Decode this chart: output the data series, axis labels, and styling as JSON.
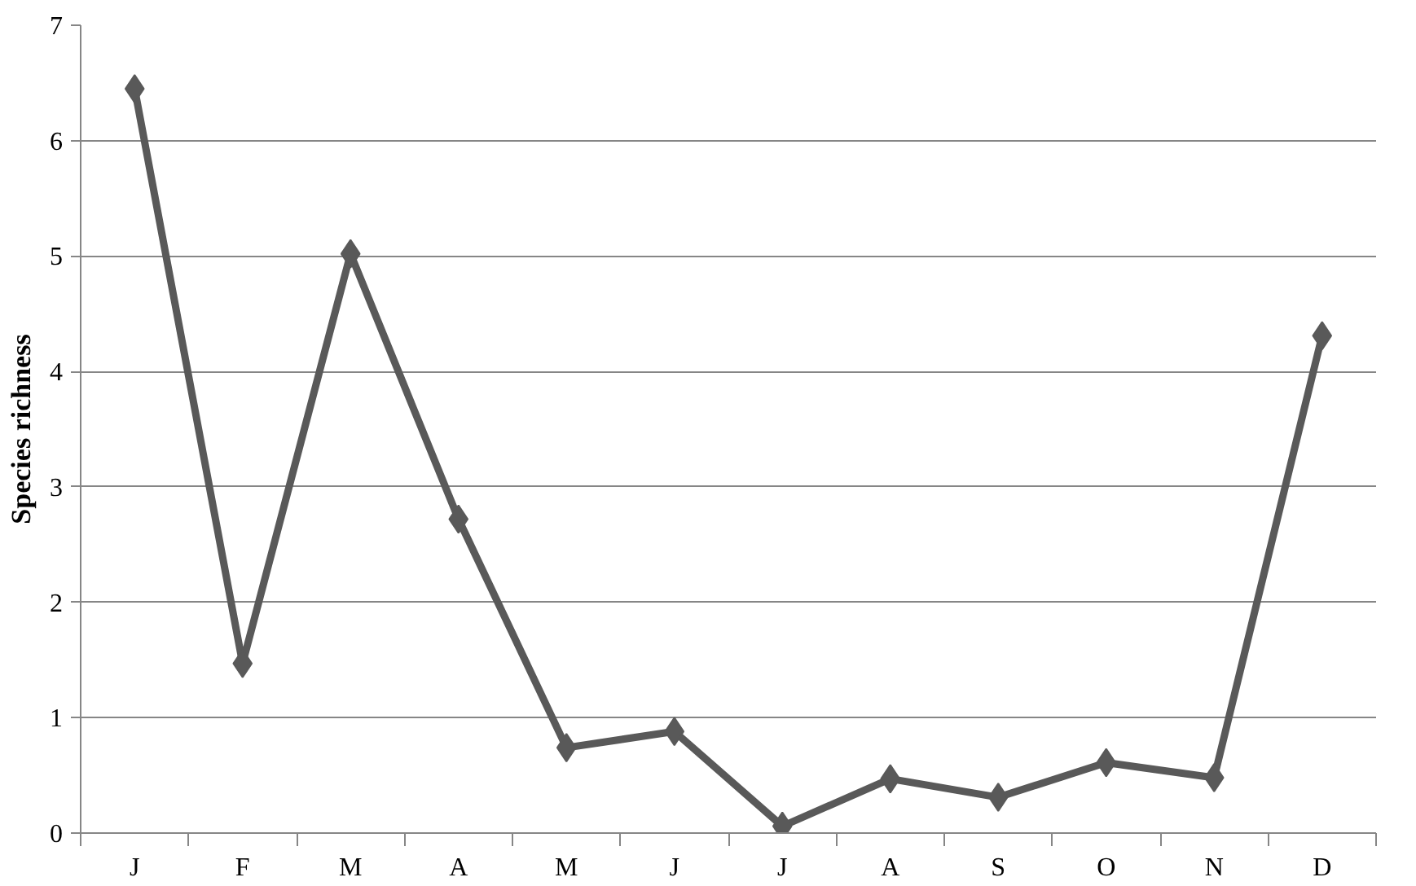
{
  "chart_data": {
    "type": "line",
    "ylabel": "Species richness",
    "categories": [
      "J",
      "F",
      "M",
      "A",
      "M",
      "J",
      "J",
      "A",
      "S",
      "O",
      "N",
      "D"
    ],
    "series": [
      {
        "color": "#595959",
        "values": [
          6.45,
          1.47,
          5.02,
          2.72,
          0.74,
          0.88,
          0.06,
          0.47,
          0.31,
          0.61,
          0.48,
          4.31
        ]
      }
    ],
    "ylim": [
      0,
      7
    ],
    "yticks": [
      0,
      1,
      2,
      3,
      4,
      5,
      6,
      7
    ],
    "grid": "y",
    "marker": "diamond",
    "line_style": "solid"
  }
}
